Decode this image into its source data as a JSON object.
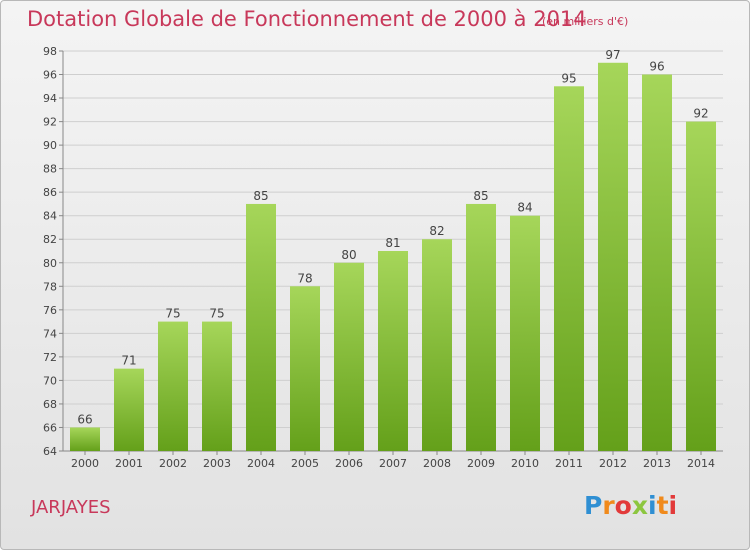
{
  "title": "Dotation Globale de Fonctionnement de 2000 à 2014",
  "subtitle": "(en milliers d'€)",
  "commune": "JARJAYES",
  "logo": {
    "letters": [
      "P",
      "r",
      "o",
      "x",
      "i",
      "t",
      "i"
    ],
    "colors": [
      "#2f8fd3",
      "#f08a1c",
      "#e23a3a",
      "#8cc63f",
      "#2f8fd3",
      "#f08a1c",
      "#e23a3a"
    ]
  },
  "colors": {
    "bar_top": "#a6d65a",
    "bar_bottom": "#64a01a",
    "text": "#c8385a"
  },
  "chart_data": {
    "type": "bar",
    "categories": [
      "2000",
      "2001",
      "2002",
      "2003",
      "2004",
      "2005",
      "2006",
      "2007",
      "2008",
      "2009",
      "2010",
      "2011",
      "2012",
      "2013",
      "2014"
    ],
    "values": [
      66,
      71,
      75,
      75,
      85,
      78,
      80,
      81,
      82,
      85,
      84,
      95,
      97,
      96,
      92
    ],
    "ylim": [
      64,
      98
    ],
    "yticks": [
      64,
      66,
      68,
      70,
      72,
      74,
      76,
      78,
      80,
      82,
      84,
      86,
      88,
      90,
      92,
      94,
      96,
      98
    ],
    "grid": true,
    "data_labels": true
  }
}
